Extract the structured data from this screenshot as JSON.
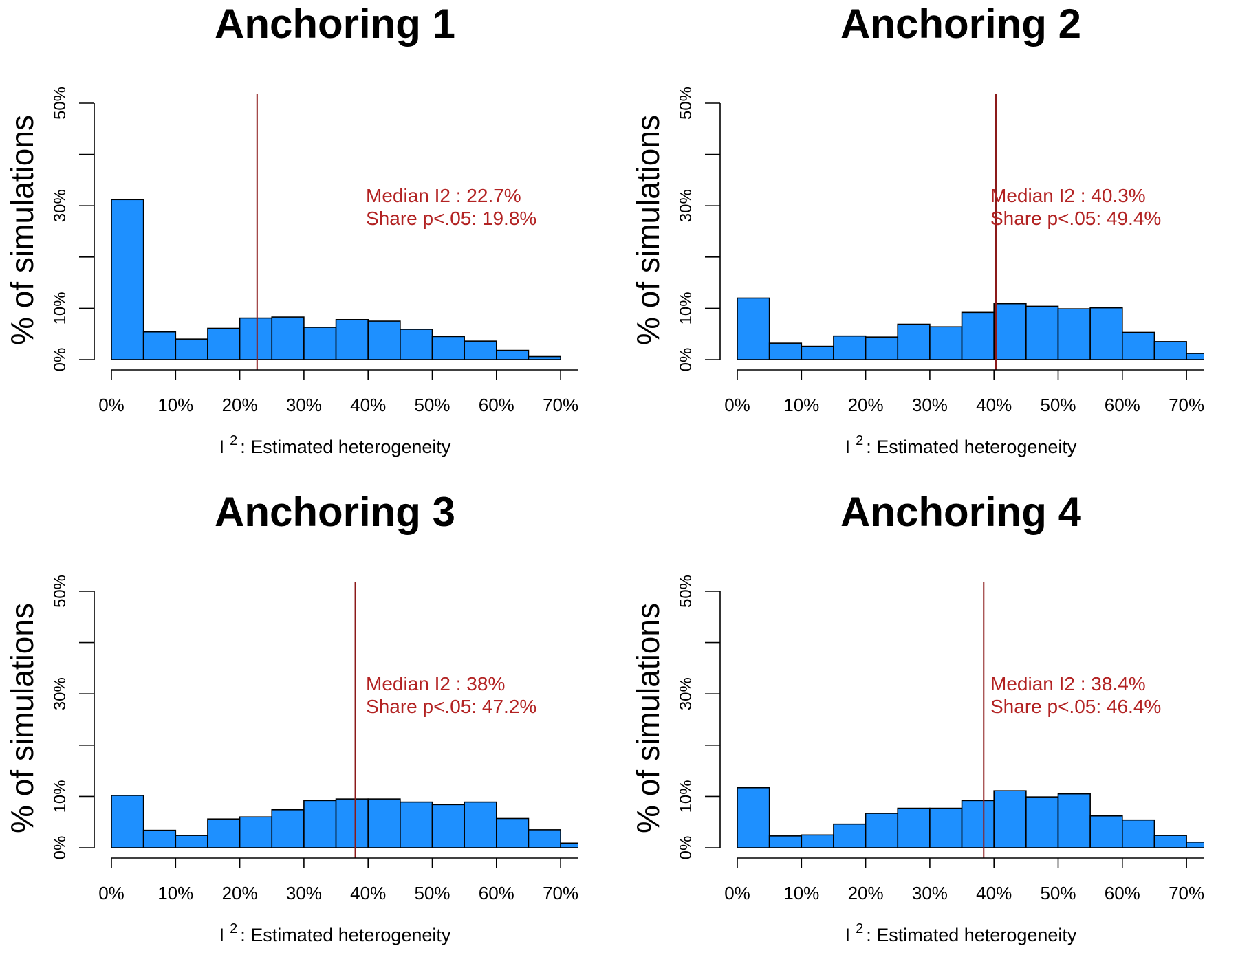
{
  "colors": {
    "bar_fill": "#1E90FF",
    "bar_stroke": "#000000",
    "median_line": "#8B1A1A",
    "annotation": "#B22222"
  },
  "chart_data": [
    {
      "type": "bar",
      "title": "Anchoring 1",
      "ylabel": "% of simulations",
      "xlabel_main": "I",
      "xlabel_sup": "2",
      "xlabel_rest": ": Estimated heterogeneity",
      "x_ticks": [
        "0%",
        "10%",
        "20%",
        "30%",
        "40%",
        "50%",
        "60%",
        "70%"
      ],
      "y_ticks": [
        "0%",
        "10%",
        "30%",
        "50%"
      ],
      "ylim": [
        0,
        50
      ],
      "bin_width": 5,
      "bin_starts": [
        0,
        5,
        10,
        15,
        20,
        25,
        30,
        35,
        40,
        45,
        50,
        55,
        60,
        65
      ],
      "values": [
        31.2,
        5.4,
        4.0,
        6.1,
        8.1,
        8.3,
        6.3,
        7.8,
        7.5,
        5.9,
        4.5,
        3.6,
        1.8,
        0.6
      ],
      "median_i2": 22.7,
      "annotation_line1": "Median I2  :   22.7%",
      "annotation_line2": "Share p<.05: 19.8%"
    },
    {
      "type": "bar",
      "title": "Anchoring 2",
      "ylabel": "% of simulations",
      "xlabel_main": "I",
      "xlabel_sup": "2",
      "xlabel_rest": ": Estimated heterogeneity",
      "x_ticks": [
        "0%",
        "10%",
        "20%",
        "30%",
        "40%",
        "50%",
        "60%",
        "70%"
      ],
      "y_ticks": [
        "0%",
        "10%",
        "30%",
        "50%"
      ],
      "ylim": [
        0,
        50
      ],
      "bin_width": 5,
      "bin_starts": [
        0,
        5,
        10,
        15,
        20,
        25,
        30,
        35,
        40,
        45,
        50,
        55,
        60,
        65,
        70
      ],
      "values": [
        12.0,
        3.2,
        2.6,
        4.6,
        4.4,
        6.9,
        6.4,
        9.2,
        10.9,
        10.4,
        9.9,
        10.1,
        5.3,
        3.5,
        1.2
      ],
      "median_i2": 40.3,
      "annotation_line1": "Median I2  :   40.3%",
      "annotation_line2": "Share p<.05: 49.4%"
    },
    {
      "type": "bar",
      "title": "Anchoring 3",
      "ylabel": "% of simulations",
      "xlabel_main": "I",
      "xlabel_sup": "2",
      "xlabel_rest": ": Estimated heterogeneity",
      "x_ticks": [
        "0%",
        "10%",
        "20%",
        "30%",
        "40%",
        "50%",
        "60%",
        "70%"
      ],
      "y_ticks": [
        "0%",
        "10%",
        "30%",
        "50%"
      ],
      "ylim": [
        0,
        50
      ],
      "bin_width": 5,
      "bin_starts": [
        0,
        5,
        10,
        15,
        20,
        25,
        30,
        35,
        40,
        45,
        50,
        55,
        60,
        65,
        70
      ],
      "values": [
        10.2,
        3.4,
        2.4,
        5.6,
        6.0,
        7.4,
        9.2,
        9.5,
        9.5,
        8.9,
        8.4,
        8.9,
        5.7,
        3.5,
        0.9
      ],
      "median_i2": 38.0,
      "annotation_line1": "Median I2  :   38%",
      "annotation_line2": "Share p<.05: 47.2%"
    },
    {
      "type": "bar",
      "title": "Anchoring 4",
      "ylabel": "% of simulations",
      "xlabel_main": "I",
      "xlabel_sup": "2",
      "xlabel_rest": ": Estimated heterogeneity",
      "x_ticks": [
        "0%",
        "10%",
        "20%",
        "30%",
        "40%",
        "50%",
        "60%",
        "70%"
      ],
      "y_ticks": [
        "0%",
        "10%",
        "30%",
        "50%"
      ],
      "ylim": [
        0,
        50
      ],
      "bin_width": 5,
      "bin_starts": [
        0,
        5,
        10,
        15,
        20,
        25,
        30,
        35,
        40,
        45,
        50,
        55,
        60,
        65,
        70
      ],
      "values": [
        11.7,
        2.3,
        2.5,
        4.6,
        6.7,
        7.7,
        7.7,
        9.2,
        11.1,
        9.9,
        10.5,
        6.2,
        5.4,
        2.4,
        1.1
      ],
      "median_i2": 38.4,
      "annotation_line1": "Median I2  :   38.4%",
      "annotation_line2": "Share p<.05: 46.4%"
    }
  ]
}
